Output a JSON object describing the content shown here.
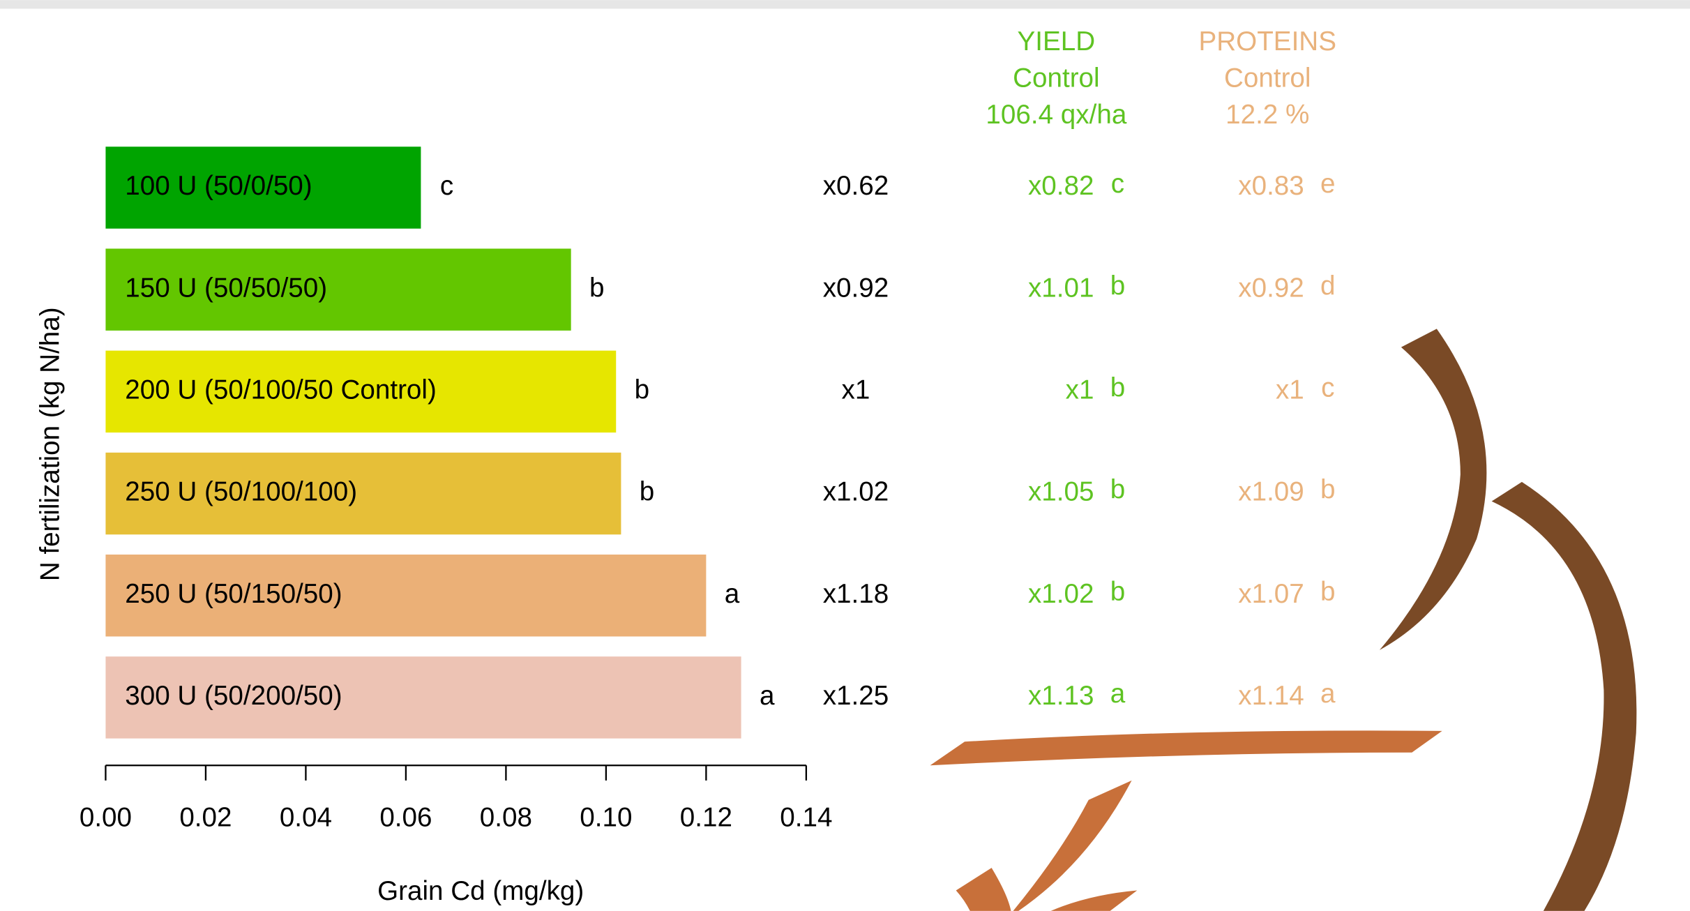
{
  "chart_data": {
    "type": "bar",
    "orientation": "horizontal",
    "categories": [
      "100 U (50/0/50)",
      "150 U (50/50/50)",
      "200 U (50/100/50 Control)",
      "250 U (50/100/100)",
      "250 U (50/150/50)",
      "300 U (50/200/50)"
    ],
    "values": [
      0.063,
      0.093,
      0.102,
      0.103,
      0.12,
      0.127
    ],
    "colors": [
      "#00a400",
      "#63c600",
      "#e6e600",
      "#e6bf38",
      "#ebb077",
      "#edc3b4"
    ],
    "group_letters": [
      "c",
      "b",
      "b",
      "b",
      "a",
      "a"
    ],
    "ratios": [
      "x0.62",
      "x0.92",
      "x1",
      "x1.02",
      "x1.18",
      "x1.25"
    ],
    "xlim": [
      0,
      0.14
    ],
    "xticks": [
      {
        "value": 0,
        "label": "0.00"
      },
      {
        "value": 0.02,
        "label": "0.02"
      },
      {
        "value": 0.04,
        "label": "0.04"
      },
      {
        "value": 0.06,
        "label": "0.06"
      },
      {
        "value": 0.08,
        "label": "0.08"
      },
      {
        "value": 0.1,
        "label": "0.10"
      },
      {
        "value": 0.12,
        "label": "0.12"
      },
      {
        "value": 0.14,
        "label": "0.14"
      }
    ],
    "xlabel": "Grain Cd (mg/kg)",
    "ylabel": "N fertilization (kg N/ha)",
    "yield": {
      "title": "YIELD",
      "subtitle": "Control",
      "control": "106.4 qx/ha",
      "color": "#5ec322",
      "ratios": [
        "x0.82",
        "x1.01",
        "x1",
        "x1.05",
        "x1.02",
        "x1.13"
      ],
      "letters": [
        "c",
        "b",
        "b",
        "b",
        "b",
        "a"
      ]
    },
    "proteins": {
      "title": "PROTEINS",
      "subtitle": "Control",
      "control": "12.2 %",
      "color": "#e9b27c",
      "ratios": [
        "x0.83",
        "x0.92",
        "x1",
        "x1.09",
        "x1.07",
        "x1.14"
      ],
      "letters": [
        "e",
        "d",
        "c",
        "b",
        "b",
        "a"
      ]
    }
  }
}
